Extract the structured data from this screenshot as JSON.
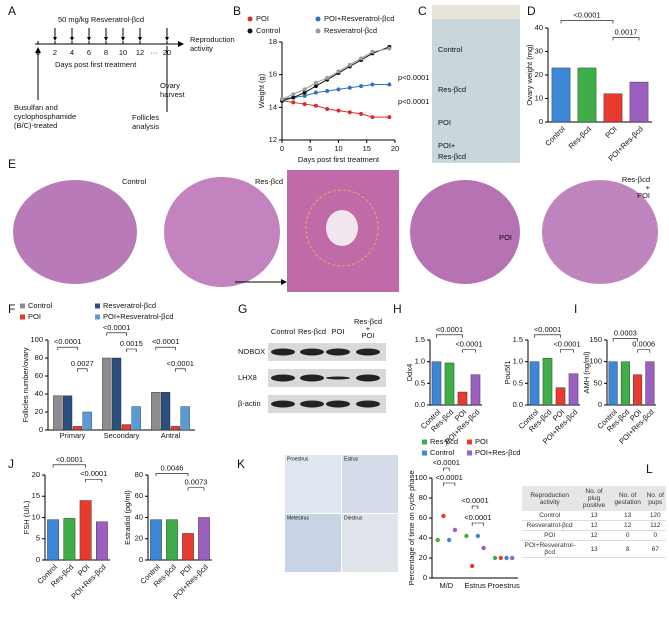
{
  "panel_labels": [
    "A",
    "B",
    "C",
    "D",
    "E",
    "F",
    "G",
    "H",
    "I",
    "J",
    "K",
    "L"
  ],
  "timeline": {
    "dose": "50 mg/kg Resveratrol-βcd",
    "days": [
      "0",
      "2",
      "4",
      "6",
      "8",
      "10",
      "12",
      "20"
    ],
    "ellipsis": "···",
    "axis_label": "Days post first treatment",
    "end": [
      "Reproduction",
      "activity"
    ],
    "harvest": [
      "Ovary",
      "harvest"
    ],
    "follicles": [
      "Follicles",
      "analysis"
    ],
    "pretreatment": [
      "Busulfan and",
      "cyclophosphamide",
      "(B/C)-treated"
    ]
  },
  "photo_c": {
    "labels": [
      [
        "Control"
      ],
      [
        "Res-βcd"
      ],
      [
        "POI"
      ],
      [
        "POI+",
        "Res-βcd"
      ]
    ]
  },
  "histology_e": {
    "labels": [
      [
        "Control"
      ],
      [
        "Res-βcd"
      ],
      [
        "POI"
      ],
      [
        "Res-βcd",
        "+",
        "POI"
      ]
    ]
  },
  "blot_g": {
    "columns": [
      [
        "Control"
      ],
      [
        "Res-βcd"
      ],
      [
        "POI"
      ],
      [
        "Res-βcd",
        "+",
        "POI"
      ]
    ],
    "rows": [
      "NOBOX",
      "LHX8",
      "β-actin"
    ]
  },
  "smear_k": {
    "labels": [
      "Proestrus",
      "Estrus",
      "Metestrus",
      "Diestrus"
    ]
  },
  "table_l": {
    "header": [
      "Reproduction activity",
      "No. of plug positive",
      "No. of gestation",
      "No. of pups"
    ],
    "rows": [
      [
        "Control",
        13,
        13,
        120
      ],
      [
        "Resveratrol-βcd",
        12,
        12,
        112
      ],
      [
        "POI",
        12,
        0,
        0
      ],
      [
        "POI+Resveratrol-βcd",
        13,
        8,
        67
      ]
    ]
  },
  "chart_data": [
    {
      "type": "line",
      "x": [
        0,
        2,
        4,
        6,
        8,
        10,
        12,
        14,
        16,
        19
      ],
      "xlim": [
        0,
        20
      ],
      "xticks": [
        0,
        5,
        10,
        15,
        20
      ],
      "ylim": [
        12,
        18
      ],
      "yticks": [
        12,
        14,
        16,
        18
      ],
      "xlabel": "Days post first treatment",
      "ylabel": "Weight (g)",
      "series": [
        {
          "name": "POI",
          "color": "#e02b2b",
          "values": [
            14.4,
            14.3,
            14.2,
            14.1,
            13.9,
            13.8,
            13.7,
            13.6,
            13.4,
            13.4
          ]
        },
        {
          "name": "POI+Resveratrol-βcd",
          "color": "#2f74c0",
          "values": [
            14.5,
            14.6,
            14.7,
            14.9,
            15.0,
            15.1,
            15.2,
            15.3,
            15.4,
            15.4
          ]
        },
        {
          "name": "Control",
          "color": "#111111",
          "values": [
            14.4,
            14.6,
            14.9,
            15.3,
            15.7,
            16.1,
            16.5,
            16.9,
            17.3,
            17.7
          ]
        },
        {
          "name": "Resveratrol-βcd",
          "color": "#9a9a9a",
          "values": [
            14.5,
            14.8,
            15.1,
            15.5,
            15.8,
            16.2,
            16.6,
            17.0,
            17.4,
            17.6
          ]
        }
      ],
      "annotations": [
        "p<0.0001",
        "p<0.0001"
      ]
    },
    {
      "type": "bar",
      "categories": [
        "Control",
        "Res-βcd",
        "POI",
        "POI+Res-βcd"
      ],
      "values": [
        23,
        23,
        12,
        17
      ],
      "colors": [
        "#3d87d6",
        "#3fae49",
        "#e63b2e",
        "#9b5fc0"
      ],
      "ylim": [
        0,
        40
      ],
      "yticks": [
        0,
        10,
        20,
        30,
        40
      ],
      "ylabel": "Ovary weight (mg)",
      "annotations": [
        "<0.0001",
        "0.0017"
      ]
    },
    {
      "type": "bar",
      "categories": [
        "Primary",
        "Secondary",
        "Antral"
      ],
      "ylim": [
        0,
        100
      ],
      "yticks": [
        0,
        20,
        40,
        60,
        80,
        100
      ],
      "ylabel": "Follicles number/ovary",
      "series": [
        {
          "name": "Control",
          "color": "#8c8c8c",
          "values": [
            38,
            80,
            42
          ]
        },
        {
          "name": "Resveratrol-βcd",
          "color": "#2c4f80",
          "values": [
            38,
            80,
            42
          ]
        },
        {
          "name": "POI",
          "color": "#e63b2e",
          "values": [
            4,
            6,
            4
          ]
        },
        {
          "name": "POI+Resveratrol-βcd",
          "color": "#5b9bd5",
          "values": [
            20,
            26,
            26
          ]
        }
      ],
      "annotations": [
        "<0.0001",
        "0.0027",
        "<0.0001",
        "0.0015",
        "<0.0001",
        "<0.0001"
      ]
    },
    {
      "type": "bar",
      "categories": [
        "Control",
        "Res-βcd",
        "POI",
        "POI+Res-βcd"
      ],
      "values": [
        1.0,
        0.97,
        0.3,
        0.7
      ],
      "colors": [
        "#3d87d6",
        "#3fae49",
        "#e63b2e",
        "#9b5fc0"
      ],
      "ylim": [
        0,
        1.5
      ],
      "yticks": [
        {
          "value": 0,
          "label": "0.0"
        },
        {
          "value": 0.5,
          "label": "0.5"
        },
        {
          "value": 1,
          "label": "1.0"
        },
        {
          "value": 1.5,
          "label": "1.5"
        }
      ],
      "ylabel": "Ddx4",
      "annotations": [
        "<0.0001",
        "<0.0001"
      ]
    },
    {
      "type": "bar",
      "categories": [
        "Control",
        "Res-βcd",
        "POI",
        "POI+Res-βcd"
      ],
      "values": [
        1.0,
        1.08,
        0.4,
        0.72
      ],
      "colors": [
        "#3d87d6",
        "#3fae49",
        "#e63b2e",
        "#9b5fc0"
      ],
      "ylim": [
        0,
        1.5
      ],
      "yticks": [
        {
          "value": 0,
          "label": "0.0"
        },
        {
          "value": 0.5,
          "label": "0.5"
        },
        {
          "value": 1,
          "label": "1.0"
        },
        {
          "value": 1.5,
          "label": "1.5"
        }
      ],
      "ylabel": "Pou5f1",
      "annotations": [
        "<0.0001",
        "<0.0001"
      ]
    },
    {
      "type": "bar",
      "categories": [
        "Control",
        "Res-βcd",
        "POI",
        "POI+Res-βcd"
      ],
      "values": [
        100,
        100,
        70,
        100
      ],
      "colors": [
        "#3d87d6",
        "#3fae49",
        "#e63b2e",
        "#9b5fc0"
      ],
      "ylim": [
        0,
        150
      ],
      "yticks": [
        0,
        50,
        100,
        150
      ],
      "ylabel": "AMH (ng/ml)",
      "annotations": [
        "0.0003",
        "0.0006"
      ]
    },
    {
      "type": "bar",
      "categories": [
        "Control",
        "Res-βcd",
        "POI",
        "POI+Res-βcd"
      ],
      "values": [
        9.5,
        9.8,
        14,
        9
      ],
      "colors": [
        "#3d87d6",
        "#3fae49",
        "#e63b2e",
        "#9b5fc0"
      ],
      "ylim": [
        0,
        20
      ],
      "yticks": [
        0,
        5,
        10,
        15,
        20
      ],
      "ylabel": "FSH (U/L)",
      "annotations": [
        "<0.0001",
        "<0.0001"
      ]
    },
    {
      "type": "bar",
      "categories": [
        "Control",
        "Res-βcd",
        "POI",
        "POI+Res-βcd"
      ],
      "values": [
        38,
        38,
        25,
        40
      ],
      "colors": [
        "#3d87d6",
        "#3fae49",
        "#e63b2e",
        "#9b5fc0"
      ],
      "ylim": [
        0,
        80
      ],
      "yticks": [
        0,
        20,
        40,
        60,
        80
      ],
      "ylabel": "Estradiol (pg/ml)",
      "annotations": [
        "0.0046",
        "0.0073"
      ]
    },
    {
      "type": "dot",
      "categories": [
        "M/D",
        "Estrus",
        "Proestrus"
      ],
      "ylim": [
        0,
        100
      ],
      "yticks": [
        0,
        20,
        40,
        60,
        80,
        100
      ],
      "ylabel": "Percentage of time on cycle phase",
      "series": [
        {
          "name": "Res-βcd",
          "color": "#3fae49",
          "values": [
            38,
            42,
            20
          ]
        },
        {
          "name": "POI",
          "color": "#e63b2e",
          "values": [
            62,
            12,
            20
          ]
        },
        {
          "name": "Control",
          "color": "#3d87d6",
          "values": [
            38,
            42,
            20
          ]
        },
        {
          "name": "POI+Res-βcd",
          "color": "#9b5fc0",
          "values": [
            48,
            30,
            20
          ]
        }
      ],
      "annotations": [
        "<0.0001",
        "<0.0001",
        "<0.0001",
        "<0.0001"
      ]
    }
  ]
}
